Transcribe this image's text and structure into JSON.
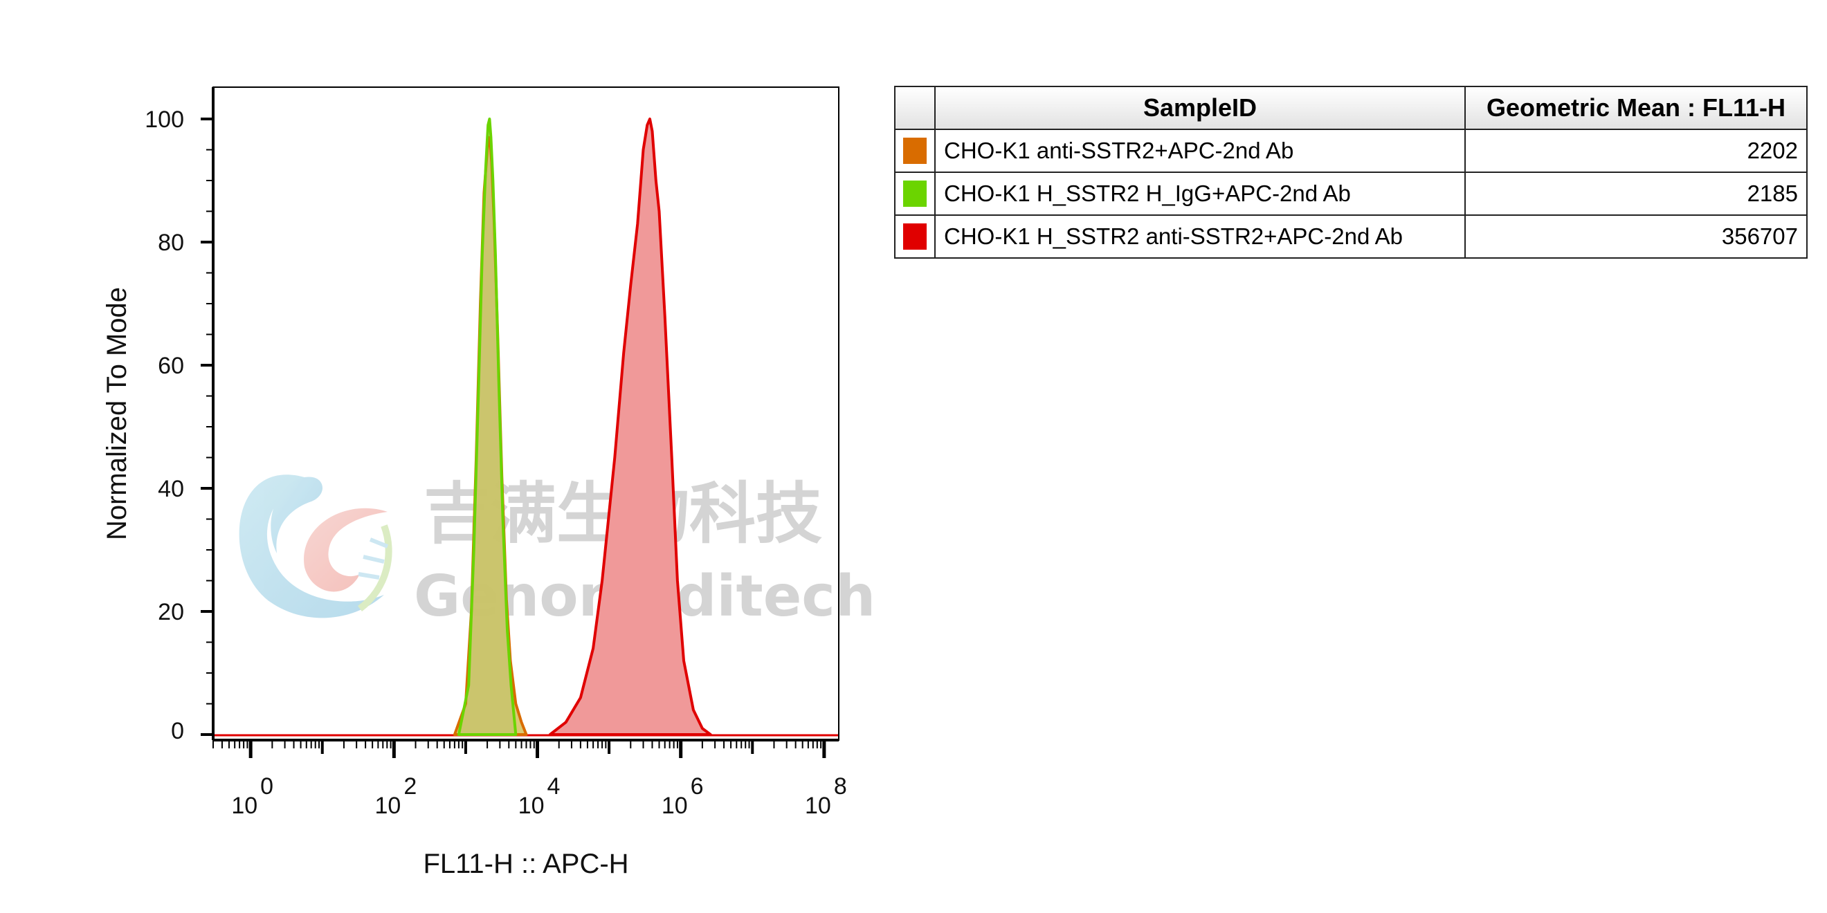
{
  "chart_data": {
    "type": "area",
    "xlabel": "FL11-H :: APC-H",
    "ylabel": "Normalized To Mode",
    "xscale": "log",
    "xlim": [
      0.3,
      160000000.0
    ],
    "ylim": [
      0,
      100
    ],
    "x_ticks": [
      {
        "value": 1,
        "base": "10",
        "exp": "0"
      },
      {
        "value": 100,
        "base": "10",
        "exp": "2"
      },
      {
        "value": 10000,
        "base": "10",
        "exp": "4"
      },
      {
        "value": 1000000,
        "base": "10",
        "exp": "6"
      },
      {
        "value": 100000000,
        "base": "10",
        "exp": "8"
      }
    ],
    "y_ticks": [
      "0",
      "20",
      "40",
      "60",
      "80",
      "100"
    ],
    "grid": false,
    "series": [
      {
        "name": "CHO-K1 anti-SSTR2+APC-2nd Ab",
        "color": "#d96c00",
        "fill": "#d4c05c",
        "x": [
          700,
          1000,
          1200,
          1400,
          1600,
          1800,
          2000,
          2100,
          2200,
          2300,
          2500,
          2800,
          3200,
          3700,
          4200,
          5000,
          6000,
          7000
        ],
        "y": [
          0,
          5,
          20,
          45,
          70,
          88,
          95,
          97,
          96,
          93,
          83,
          65,
          42,
          22,
          12,
          5,
          2,
          0
        ]
      },
      {
        "name": "CHO-K1 H_SSTR2 H_IgG+APC-2nd Ab",
        "color": "#6bd400",
        "fill": "#c8c46c",
        "x": [
          800,
          1100,
          1300,
          1500,
          1700,
          1900,
          2050,
          2150,
          2250,
          2400,
          2600,
          2900,
          3300,
          3800,
          4300,
          5000
        ],
        "y": [
          0,
          8,
          30,
          55,
          78,
          92,
          99,
          100,
          97,
          90,
          78,
          57,
          35,
          17,
          8,
          0
        ]
      },
      {
        "name": "CHO-K1 H_SSTR2 anti-SSTR2+APC-2nd Ab",
        "color": "#e00000",
        "fill": "#f09999",
        "x": [
          15000,
          25000,
          40000,
          60000,
          80000,
          120000,
          160000,
          200000,
          250000,
          300000,
          340000,
          370000,
          400000,
          450000,
          500000,
          600000,
          750000,
          900000,
          1100000,
          1500000,
          2000000,
          2600000
        ],
        "y": [
          0,
          2,
          6,
          14,
          25,
          45,
          62,
          73,
          83,
          95,
          99,
          100,
          98,
          90,
          85,
          68,
          45,
          25,
          12,
          4,
          1,
          0
        ]
      }
    ]
  },
  "watermark": {
    "cn": "吉满生物科技",
    "en": "Genomeditech"
  },
  "table": {
    "columns": [
      "",
      "SampleID",
      "Geometric Mean : FL11-H"
    ],
    "rows": [
      {
        "color": "#d96c00",
        "sample": "CHO-K1 anti-SSTR2+APC-2nd Ab",
        "value": "2202"
      },
      {
        "color": "#6bd400",
        "sample": "CHO-K1 H_SSTR2 H_IgG+APC-2nd Ab",
        "value": "2185"
      },
      {
        "color": "#e00000",
        "sample": "CHO-K1 H_SSTR2 anti-SSTR2+APC-2nd Ab",
        "value": "356707"
      }
    ]
  }
}
